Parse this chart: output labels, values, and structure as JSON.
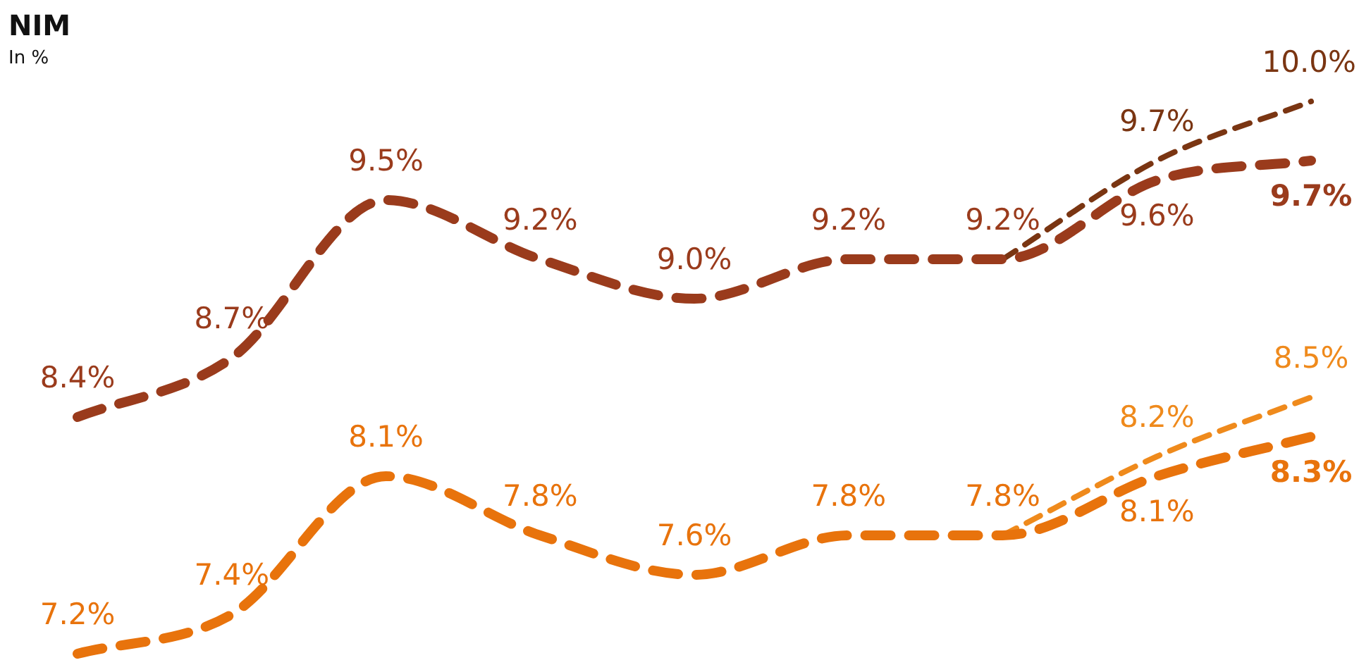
{
  "chart_data": {
    "type": "line",
    "title": "NIM",
    "subtitle": "In %",
    "categories": [
      null,
      null,
      null,
      null,
      null,
      null,
      null,
      null,
      null
    ],
    "legend": false,
    "line_style": "dashed",
    "marker": "none",
    "series": [
      {
        "color": "#9a3b1c",
        "values": [
          8.4,
          8.7,
          9.5,
          9.2,
          9.0,
          9.2,
          9.2,
          9.6,
          9.7
        ],
        "value_labels": [
          "8.4%",
          "8.7%",
          "9.5%",
          "9.2%",
          "9.0%",
          "9.2%",
          "9.2%",
          "9.6%",
          "9.7%"
        ]
      },
      {
        "color": "#7a3512",
        "values": [
          null,
          null,
          null,
          null,
          null,
          null,
          9.2,
          9.7,
          10.0
        ],
        "value_labels": [
          null,
          null,
          null,
          null,
          null,
          null,
          null,
          "9.7%",
          "10.0%"
        ]
      },
      {
        "color": "#e8730c",
        "values": [
          7.2,
          7.4,
          8.1,
          7.8,
          7.6,
          7.8,
          7.8,
          8.1,
          8.3
        ],
        "value_labels": [
          "7.2%",
          "7.4%",
          "8.1%",
          "7.8%",
          "7.6%",
          "7.8%",
          "7.8%",
          "8.1%",
          "8.3%"
        ]
      },
      {
        "color": "#ef8a1c",
        "values": [
          null,
          null,
          null,
          null,
          null,
          null,
          7.8,
          8.2,
          8.5
        ],
        "value_labels": [
          null,
          null,
          null,
          null,
          null,
          null,
          null,
          "8.2%",
          "8.5%"
        ]
      }
    ]
  }
}
